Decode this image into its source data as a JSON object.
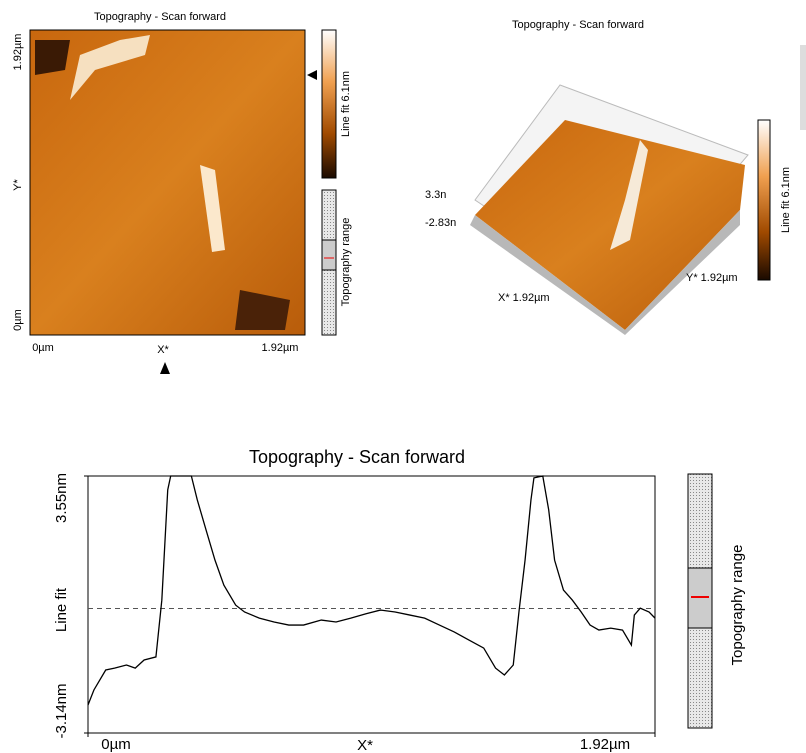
{
  "image_view_2d": {
    "title": "Topography - Scan forward",
    "y_top": "1.92µm",
    "y_label": "Y*",
    "y_bottom": "0µm",
    "x_left": "0µm",
    "x_label": "X*",
    "x_right": "1.92µm",
    "colorbar_label": "Line fit 6.1nm",
    "range_label": "Topography range"
  },
  "image_view_3d": {
    "title": "Topography - Scan forward",
    "z_top": "3.3n",
    "z_bottom": "-2.83n",
    "x_label": "X* 1.92µm",
    "y_label": "Y* 1.92µm",
    "colorbar_label": "Line fit 6.1nm"
  },
  "chart_data": {
    "type": "line",
    "title": "Topography - Scan forward",
    "x_label": "X*",
    "y_label": "Line fit",
    "range_bar_label": "Topography range",
    "color": "#000000",
    "x": [
      0,
      0.02,
      0.06,
      0.09,
      0.13,
      0.16,
      0.19,
      0.23,
      0.25,
      0.27,
      0.28,
      0.35,
      0.37,
      0.4,
      0.43,
      0.46,
      0.5,
      0.53,
      0.58,
      0.63,
      0.68,
      0.73,
      0.79,
      0.84,
      0.89,
      0.94,
      0.99,
      1.04,
      1.09,
      1.14,
      1.19,
      1.24,
      1.29,
      1.34,
      1.38,
      1.41,
      1.44,
      1.46,
      1.48,
      1.5,
      1.51,
      1.54,
      1.56,
      1.58,
      1.61,
      1.64,
      1.67,
      1.7,
      1.73,
      1.77,
      1.81,
      1.84,
      1.85,
      1.87,
      1.9,
      1.92
    ],
    "values": [
      -2.41,
      -2.02,
      -1.5,
      -1.45,
      -1.37,
      -1.45,
      -1.24,
      -1.16,
      0.32,
      3.19,
      3.55,
      3.55,
      2.93,
      2.14,
      1.36,
      0.71,
      0.19,
      0.01,
      -0.15,
      -0.25,
      -0.33,
      -0.33,
      -0.2,
      -0.25,
      -0.15,
      -0.04,
      0.06,
      0.01,
      -0.07,
      -0.15,
      -0.33,
      -0.51,
      -0.72,
      -0.93,
      -1.45,
      -1.63,
      -1.37,
      0.06,
      1.36,
      2.93,
      3.5,
      3.55,
      2.67,
      1.36,
      0.58,
      0.32,
      0.01,
      -0.33,
      -0.46,
      -0.41,
      -0.46,
      -0.85,
      -0.07,
      0.11,
      0.01,
      -0.15
    ],
    "reference_line": 0.1,
    "xlim": [
      0,
      1.92
    ],
    "xticks": [
      {
        "value": 0,
        "label": "0µm"
      },
      {
        "value": 1.92,
        "label": "1.92µm"
      }
    ],
    "ylim": [
      -3.14,
      3.55
    ],
    "yticks": [
      {
        "value": -3.14,
        "label": "-3.14nm"
      },
      {
        "value": 3.55,
        "label": "3.55nm"
      }
    ]
  }
}
